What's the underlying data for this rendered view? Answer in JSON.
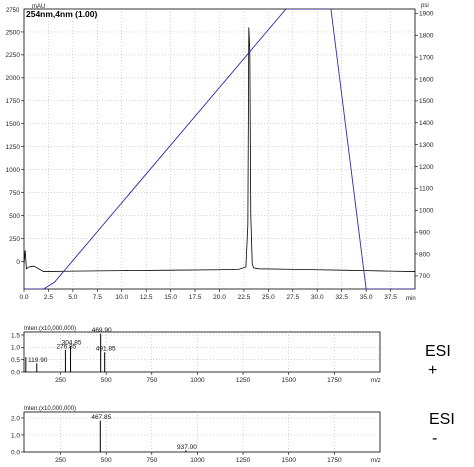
{
  "chart_data": [
    {
      "type": "line",
      "title": "254nm,4nm (1.00)",
      "y_unit": "mAU",
      "y2_unit": "psi",
      "x_unit": "min",
      "xlim": [
        0,
        40
      ],
      "ylim": [
        -300,
        2750
      ],
      "y2lim": [
        640,
        1920
      ],
      "xticks": [
        "0.0",
        "2.5",
        "5.0",
        "7.5",
        "10.0",
        "12.5",
        "15.0",
        "17.5",
        "20.0",
        "22.5",
        "25.0",
        "27.5",
        "30.0",
        "32.5",
        "35.0",
        "37.5"
      ],
      "yticks": [
        "0",
        "250",
        "500",
        "750",
        "1000",
        "1250",
        "1500",
        "1750",
        "2000",
        "2250",
        "2500"
      ],
      "y_top_label": "2750",
      "y2ticks": [
        "700",
        "800",
        "900",
        "1000",
        "1100",
        "1200",
        "1300",
        "1400",
        "1500",
        "1600",
        "1700",
        "1800",
        "1900"
      ],
      "series": [
        {
          "color": "#000000",
          "axis": "left",
          "x": [
            0.0,
            0.12,
            0.25,
            0.5,
            1.0,
            2.0,
            5.0,
            10.0,
            15.0,
            20.0,
            22.0,
            22.7,
            22.9,
            23.0,
            23.1,
            23.2,
            23.35,
            23.5,
            24.0,
            27.0,
            30.0,
            32.5,
            35.0,
            37.5,
            40.0
          ],
          "y": [
            -30,
            120,
            -80,
            -60,
            -50,
            -110,
            -105,
            -100,
            -95,
            -90,
            -85,
            -60,
            400,
            2550,
            2300,
            500,
            -30,
            -70,
            -80,
            -85,
            -90,
            -95,
            -100,
            -105,
            -110
          ]
        },
        {
          "color": "#2b2bb0",
          "axis": "right",
          "x": [
            0.0,
            2.0,
            3.1,
            26.8,
            31.4,
            35.0,
            40.0
          ],
          "y": [
            640,
            640,
            670,
            1920,
            1920,
            640,
            640
          ]
        }
      ]
    },
    {
      "type": "bar",
      "title": "ESI +",
      "y_axis_label": "Inten.(x10,000,000)",
      "x_unit": "m/z",
      "xlim": [
        50,
        2000
      ],
      "ylim": [
        0,
        1.62
      ],
      "xticks": [
        "250",
        "500",
        "750",
        "1000",
        "1250",
        "1500",
        "1750"
      ],
      "yticks": [
        "0.0",
        "0.5",
        "1.0",
        "1.5"
      ],
      "peaks": [
        {
          "mz": 60.0,
          "intensity": 0.6
        },
        {
          "mz": 119.9,
          "intensity": 0.35
        },
        {
          "mz": 276.85,
          "intensity": 0.9
        },
        {
          "mz": 304.85,
          "intensity": 1.05
        },
        {
          "mz": 469.9,
          "intensity": 1.55
        },
        {
          "mz": 491.85,
          "intensity": 0.8
        }
      ],
      "peak_labels": [
        "119.90",
        "276.85",
        "304.85",
        "469.90",
        "491.85"
      ]
    },
    {
      "type": "bar",
      "title": "ESI -",
      "y_axis_label": "Inten.(x10,000,000)",
      "x_unit": "m/z",
      "xlim": [
        50,
        2000
      ],
      "ylim": [
        0,
        2.35
      ],
      "xticks": [
        "250",
        "500",
        "750",
        "1000",
        "1250",
        "1500",
        "1750"
      ],
      "yticks": [
        "0.0",
        "1.0",
        "2.0"
      ],
      "peaks": [
        {
          "mz": 467.85,
          "intensity": 1.85
        },
        {
          "mz": 937.0,
          "intensity": 0.1
        }
      ],
      "peak_labels": [
        "467.85",
        "937.00"
      ]
    }
  ],
  "labels": {
    "esi_pos_line1": "ESI",
    "esi_pos_line2": "+",
    "esi_neg_line1": "ESI",
    "esi_neg_line2": "-"
  }
}
